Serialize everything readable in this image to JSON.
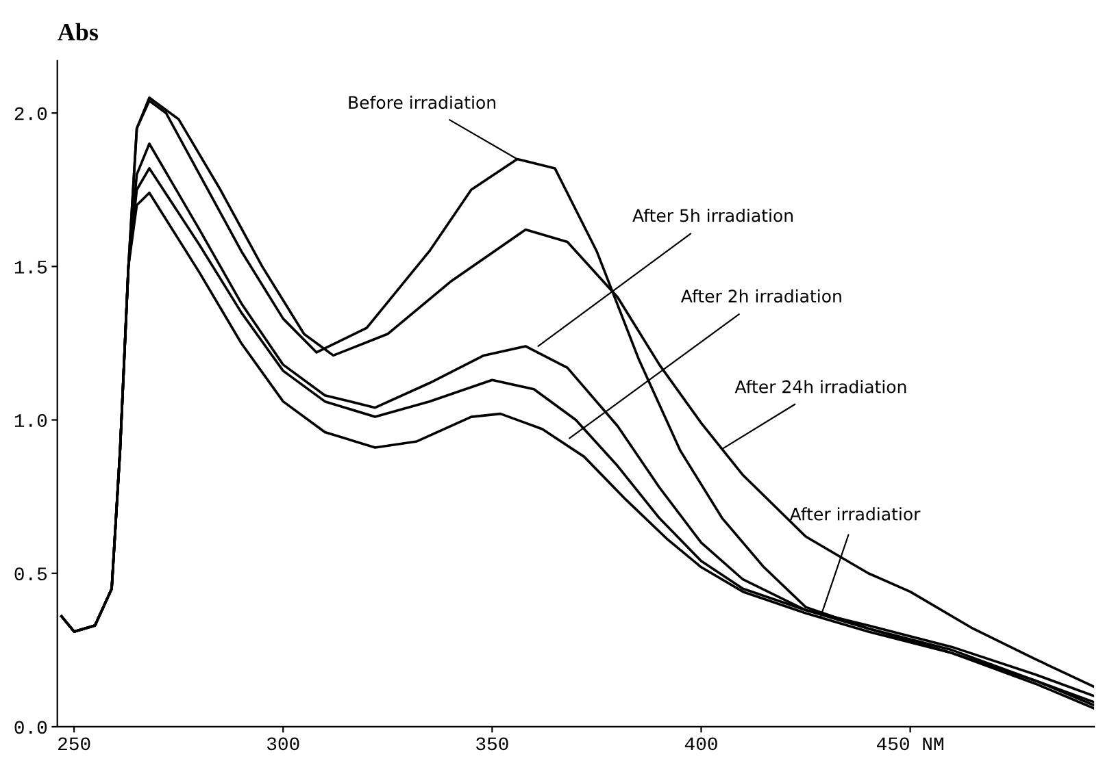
{
  "chart_data": {
    "type": "line",
    "ylabel": "Abs",
    "xlim": [
      246,
      494
    ],
    "ylim": [
      0,
      2.17
    ],
    "xticks": [
      250,
      300,
      350,
      400,
      {
        "value": 450,
        "label": "450 NM"
      }
    ],
    "yticks": [
      {
        "value": 0,
        "label": "0.0"
      },
      0.5,
      {
        "value": 1,
        "label": "1.0"
      },
      1.5,
      {
        "value": 2,
        "label": "2.0"
      }
    ],
    "grid": false,
    "legend": false,
    "marker": "none",
    "line_style": "solid",
    "series": [
      {
        "color": "#000000",
        "x": [
          247,
          250,
          255,
          259,
          261,
          263,
          265,
          268,
          272,
          280,
          290,
          300,
          308,
          320,
          335,
          345,
          356,
          365,
          375,
          385,
          395,
          405,
          415,
          425,
          440,
          460,
          480,
          494
        ],
        "values": [
          0.36,
          0.31,
          0.33,
          0.45,
          0.9,
          1.5,
          1.95,
          2.04,
          2.0,
          1.8,
          1.55,
          1.33,
          1.22,
          1.3,
          1.55,
          1.75,
          1.85,
          1.82,
          1.55,
          1.2,
          0.9,
          0.68,
          0.52,
          0.39,
          0.32,
          0.24,
          0.15,
          0.08
        ]
      },
      {
        "color": "#000000",
        "x": [
          247,
          250,
          255,
          259,
          261,
          263,
          265,
          268,
          275,
          285,
          295,
          305,
          312,
          325,
          340,
          358,
          368,
          380,
          390,
          400,
          410,
          425,
          440,
          450,
          465,
          480,
          494
        ],
        "values": [
          0.36,
          0.31,
          0.33,
          0.45,
          0.9,
          1.5,
          1.95,
          2.05,
          1.98,
          1.75,
          1.5,
          1.28,
          1.21,
          1.28,
          1.45,
          1.62,
          1.58,
          1.4,
          1.18,
          0.99,
          0.82,
          0.62,
          0.5,
          0.44,
          0.32,
          0.22,
          0.13
        ]
      },
      {
        "color": "#000000",
        "x": [
          247,
          250,
          255,
          259,
          261,
          263,
          265,
          268,
          280,
          290,
          300,
          310,
          322,
          335,
          348,
          358,
          368,
          380,
          390,
          400,
          410,
          425,
          440,
          460,
          480,
          494
        ],
        "values": [
          0.36,
          0.31,
          0.33,
          0.45,
          0.9,
          1.5,
          1.8,
          1.9,
          1.62,
          1.38,
          1.18,
          1.08,
          1.04,
          1.12,
          1.21,
          1.24,
          1.17,
          0.98,
          0.78,
          0.6,
          0.48,
          0.38,
          0.33,
          0.26,
          0.17,
          0.1
        ]
      },
      {
        "color": "#000000",
        "x": [
          247,
          250,
          255,
          259,
          261,
          263,
          265,
          268,
          280,
          290,
          300,
          310,
          322,
          335,
          350,
          360,
          370,
          380,
          390,
          400,
          410,
          425,
          440,
          460,
          480,
          494
        ],
        "values": [
          0.36,
          0.31,
          0.33,
          0.45,
          0.9,
          1.5,
          1.75,
          1.82,
          1.57,
          1.35,
          1.16,
          1.06,
          1.01,
          1.06,
          1.13,
          1.1,
          1.0,
          0.85,
          0.68,
          0.54,
          0.45,
          0.38,
          0.32,
          0.25,
          0.15,
          0.07
        ]
      },
      {
        "color": "#000000",
        "x": [
          247,
          250,
          255,
          259,
          261,
          263,
          265,
          268,
          280,
          290,
          300,
          310,
          322,
          332,
          345,
          352,
          362,
          372,
          382,
          392,
          400,
          410,
          425,
          440,
          460,
          480,
          494
        ],
        "values": [
          0.36,
          0.31,
          0.33,
          0.45,
          0.9,
          1.5,
          1.7,
          1.74,
          1.48,
          1.25,
          1.06,
          0.96,
          0.91,
          0.93,
          1.01,
          1.02,
          0.97,
          0.88,
          0.74,
          0.61,
          0.52,
          0.44,
          0.37,
          0.31,
          0.24,
          0.14,
          0.06
        ]
      }
    ],
    "annotations": [
      {
        "text": "Before irradiation",
        "x": 356,
        "y": 1.85
      },
      {
        "text": "After 5h irradiation",
        "x": 361,
        "y": 1.24
      },
      {
        "text": "After 2h irradiation",
        "x": 368.5,
        "y": 0.94
      },
      {
        "text": "After 24h irradiation",
        "x": 405,
        "y": 0.905
      },
      {
        "text": "After irradiatior",
        "x": 428.6,
        "y": 0.36
      }
    ]
  }
}
